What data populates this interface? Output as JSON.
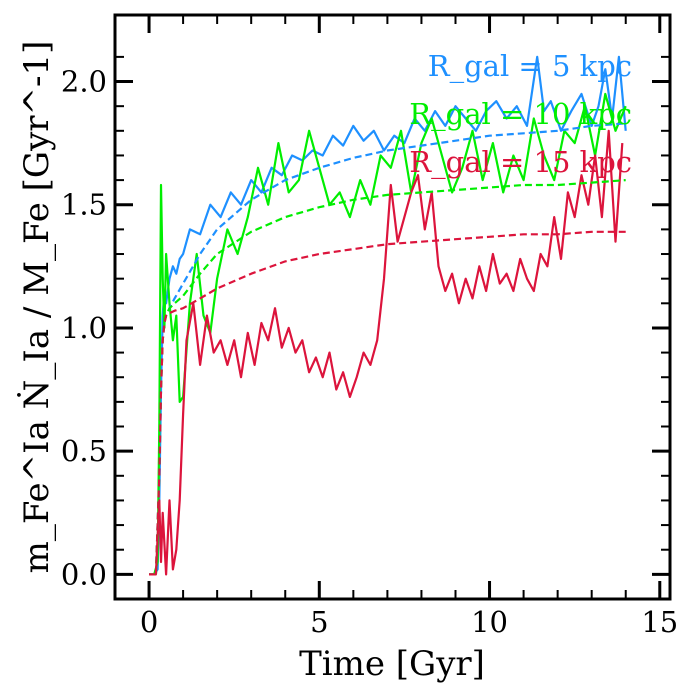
{
  "chart_data": {
    "type": "line",
    "xlabel": "Time [Gyr]",
    "ylabel": "m_Fe^Ia Ṅ_Ia / M_Fe [Gyr^-1]",
    "xlim": [
      -1,
      15.3
    ],
    "ylim": [
      -0.1,
      2.27
    ],
    "x_ticks": [
      0,
      5,
      10,
      15
    ],
    "y_ticks": [
      0.0,
      0.5,
      1.0,
      1.5,
      2.0
    ],
    "x_tick_labels": [
      "0",
      "5",
      "10",
      "15"
    ],
    "y_tick_labels": [
      "0.0",
      "0.5",
      "1.0",
      "1.5",
      "2.0"
    ],
    "legend_position": "top-right",
    "grid": false,
    "series": [
      {
        "name": "R_gal = 5 kpc",
        "color": "#1e90ff",
        "style": "solid",
        "x": [
          0.0,
          0.15,
          0.25,
          0.3,
          0.35,
          0.4,
          0.45,
          0.5,
          0.6,
          0.7,
          0.8,
          0.9,
          1.0,
          1.2,
          1.5,
          1.8,
          2.1,
          2.4,
          2.7,
          3.0,
          3.3,
          3.6,
          3.9,
          4.2,
          4.5,
          4.8,
          5.1,
          5.4,
          5.7,
          6.0,
          6.3,
          6.6,
          6.9,
          7.2,
          7.5,
          7.8,
          8.1,
          8.4,
          8.7,
          9.0,
          9.3,
          9.6,
          9.9,
          10.2,
          10.5,
          10.8,
          11.1,
          11.4,
          11.6,
          11.8,
          12.1,
          12.4,
          12.7,
          13.0,
          13.2,
          13.4,
          13.6,
          13.8,
          14.0
        ],
        "y": [
          0.0,
          0.0,
          0.02,
          0.3,
          0.75,
          1.05,
          1.15,
          1.1,
          1.2,
          1.25,
          1.22,
          1.28,
          1.3,
          1.4,
          1.38,
          1.5,
          1.45,
          1.55,
          1.5,
          1.6,
          1.55,
          1.65,
          1.62,
          1.7,
          1.68,
          1.72,
          1.7,
          1.78,
          1.74,
          1.82,
          1.76,
          1.8,
          1.72,
          1.78,
          1.75,
          1.85,
          1.8,
          1.88,
          1.82,
          1.9,
          1.85,
          1.8,
          1.88,
          1.92,
          1.85,
          1.9,
          1.82,
          2.1,
          1.88,
          1.92,
          1.8,
          1.88,
          1.95,
          1.82,
          1.9,
          2.05,
          1.85,
          2.1,
          1.8
        ]
      },
      {
        "name": "R_gal = 10 kpc",
        "color": "#00ee00",
        "style": "solid",
        "x": [
          0.0,
          0.15,
          0.25,
          0.3,
          0.35,
          0.4,
          0.45,
          0.5,
          0.6,
          0.7,
          0.8,
          0.9,
          1.0,
          1.2,
          1.4,
          1.6,
          1.8,
          2.0,
          2.3,
          2.6,
          2.9,
          3.2,
          3.5,
          3.8,
          4.1,
          4.4,
          4.7,
          5.0,
          5.3,
          5.6,
          5.9,
          6.2,
          6.5,
          6.8,
          7.1,
          7.4,
          7.7,
          8.0,
          8.3,
          8.6,
          8.9,
          9.2,
          9.5,
          9.8,
          10.1,
          10.4,
          10.7,
          11.0,
          11.3,
          11.6,
          11.9,
          12.2,
          12.5,
          12.8,
          13.1,
          13.4,
          13.7,
          14.0
        ],
        "y": [
          0.0,
          0.0,
          0.05,
          0.6,
          1.58,
          1.2,
          1.0,
          1.3,
          1.1,
          0.95,
          1.05,
          0.7,
          0.72,
          1.1,
          1.3,
          1.05,
          0.98,
          1.2,
          1.4,
          1.3,
          1.45,
          1.65,
          1.5,
          1.75,
          1.55,
          1.6,
          1.8,
          1.65,
          1.5,
          1.55,
          1.45,
          1.6,
          1.5,
          1.7,
          1.65,
          1.8,
          1.55,
          1.75,
          1.85,
          1.7,
          1.55,
          1.65,
          1.8,
          1.6,
          1.75,
          1.55,
          1.7,
          1.6,
          1.85,
          1.7,
          1.6,
          1.8,
          1.75,
          1.9,
          1.7,
          1.95,
          1.8,
          1.9
        ]
      },
      {
        "name": "R_gal = 15 kpc",
        "color": "#dc143c",
        "style": "solid",
        "x": [
          0.0,
          0.2,
          0.3,
          0.35,
          0.4,
          0.5,
          0.6,
          0.7,
          0.8,
          0.9,
          1.0,
          1.1,
          1.3,
          1.5,
          1.7,
          1.9,
          2.1,
          2.3,
          2.5,
          2.7,
          2.9,
          3.1,
          3.3,
          3.5,
          3.7,
          3.9,
          4.1,
          4.3,
          4.5,
          4.7,
          4.9,
          5.1,
          5.3,
          5.5,
          5.7,
          5.9,
          6.1,
          6.3,
          6.5,
          6.7,
          6.9,
          7.1,
          7.3,
          7.5,
          7.7,
          7.9,
          8.1,
          8.3,
          8.5,
          8.7,
          8.9,
          9.1,
          9.3,
          9.5,
          9.7,
          9.9,
          10.1,
          10.3,
          10.5,
          10.7,
          10.9,
          11.1,
          11.3,
          11.5,
          11.7,
          11.9,
          12.1,
          12.3,
          12.5,
          12.7,
          12.9,
          13.1,
          13.3,
          13.5,
          13.7,
          13.9
        ],
        "y": [
          0.0,
          0.0,
          0.3,
          0.05,
          0.25,
          0.0,
          0.3,
          0.02,
          0.1,
          0.3,
          0.65,
          0.95,
          1.1,
          0.85,
          1.05,
          0.9,
          0.95,
          0.85,
          0.95,
          0.8,
          0.98,
          0.85,
          1.02,
          0.95,
          1.08,
          0.92,
          1.0,
          0.9,
          0.95,
          0.82,
          0.88,
          0.8,
          0.9,
          0.75,
          0.82,
          0.72,
          0.8,
          0.9,
          0.85,
          0.95,
          1.2,
          1.58,
          1.35,
          1.45,
          1.55,
          1.62,
          1.4,
          1.55,
          1.25,
          1.15,
          1.22,
          1.1,
          1.2,
          1.12,
          1.25,
          1.15,
          1.3,
          1.18,
          1.22,
          1.15,
          1.28,
          1.2,
          1.15,
          1.3,
          1.25,
          1.45,
          1.28,
          1.55,
          1.45,
          1.62,
          1.5,
          1.7,
          1.45,
          1.8,
          1.35,
          1.75
        ]
      },
      {
        "name": "",
        "color": "#1e90ff",
        "style": "dashed",
        "x": [
          0.2,
          0.3,
          0.35,
          0.4,
          0.45,
          0.5,
          0.6,
          0.75,
          1.0,
          1.5,
          2.0,
          3.0,
          4.0,
          5.0,
          6.0,
          7.0,
          8.0,
          9.0,
          10.0,
          11.0,
          12.0,
          13.0,
          14.0
        ],
        "y": [
          0.0,
          0.4,
          0.75,
          0.95,
          1.02,
          1.05,
          1.08,
          1.12,
          1.18,
          1.3,
          1.4,
          1.52,
          1.6,
          1.65,
          1.69,
          1.72,
          1.74,
          1.76,
          1.78,
          1.79,
          1.8,
          1.82,
          1.83
        ]
      },
      {
        "name": "",
        "color": "#00ee00",
        "style": "dashed",
        "x": [
          0.2,
          0.3,
          0.35,
          0.4,
          0.45,
          0.5,
          0.6,
          0.75,
          1.0,
          1.5,
          2.0,
          3.0,
          4.0,
          5.0,
          6.0,
          7.0,
          8.0,
          9.0,
          10.0,
          11.0,
          12.0,
          13.0,
          14.0
        ],
        "y": [
          0.0,
          0.4,
          0.75,
          0.95,
          1.02,
          1.05,
          1.08,
          1.1,
          1.13,
          1.22,
          1.3,
          1.39,
          1.45,
          1.49,
          1.52,
          1.54,
          1.55,
          1.56,
          1.57,
          1.58,
          1.58,
          1.59,
          1.6
        ]
      },
      {
        "name": "",
        "color": "#dc143c",
        "style": "dashed",
        "x": [
          0.2,
          0.3,
          0.35,
          0.4,
          0.45,
          0.5,
          0.6,
          0.75,
          1.0,
          1.5,
          2.0,
          3.0,
          4.0,
          5.0,
          6.0,
          7.0,
          8.0,
          9.0,
          10.0,
          11.0,
          12.0,
          13.0,
          14.0
        ],
        "y": [
          0.0,
          0.4,
          0.75,
          0.95,
          1.02,
          1.05,
          1.06,
          1.07,
          1.08,
          1.12,
          1.16,
          1.22,
          1.27,
          1.3,
          1.32,
          1.34,
          1.35,
          1.36,
          1.37,
          1.38,
          1.38,
          1.39,
          1.39
        ]
      }
    ],
    "legend": [
      {
        "text": "R_gal = 5 kpc",
        "color": "#1e90ff"
      },
      {
        "text": "R_gal = 10 kpc",
        "color": "#00ee00"
      },
      {
        "text": "R_gal = 15 kpc",
        "color": "#dc143c"
      }
    ]
  }
}
